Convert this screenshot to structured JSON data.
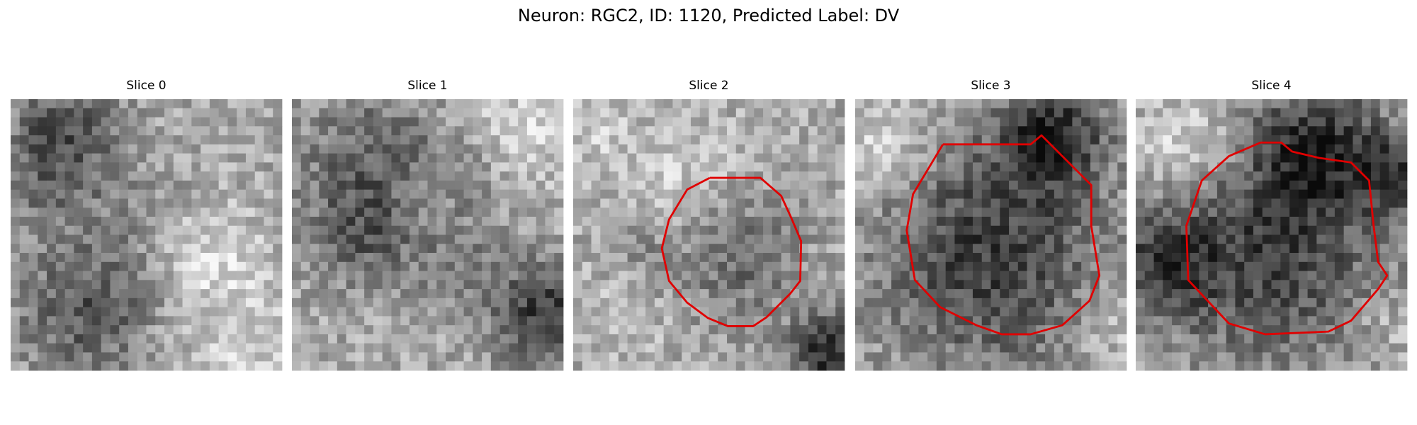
{
  "title": "Neuron: RGC2, ID: 1120, Predicted Label: DV",
  "panels": [
    {
      "title": "Slice 0"
    },
    {
      "title": "Slice 1"
    },
    {
      "title": "Slice 2"
    },
    {
      "title": "Slice 3"
    },
    {
      "title": "Slice 4"
    }
  ]
}
